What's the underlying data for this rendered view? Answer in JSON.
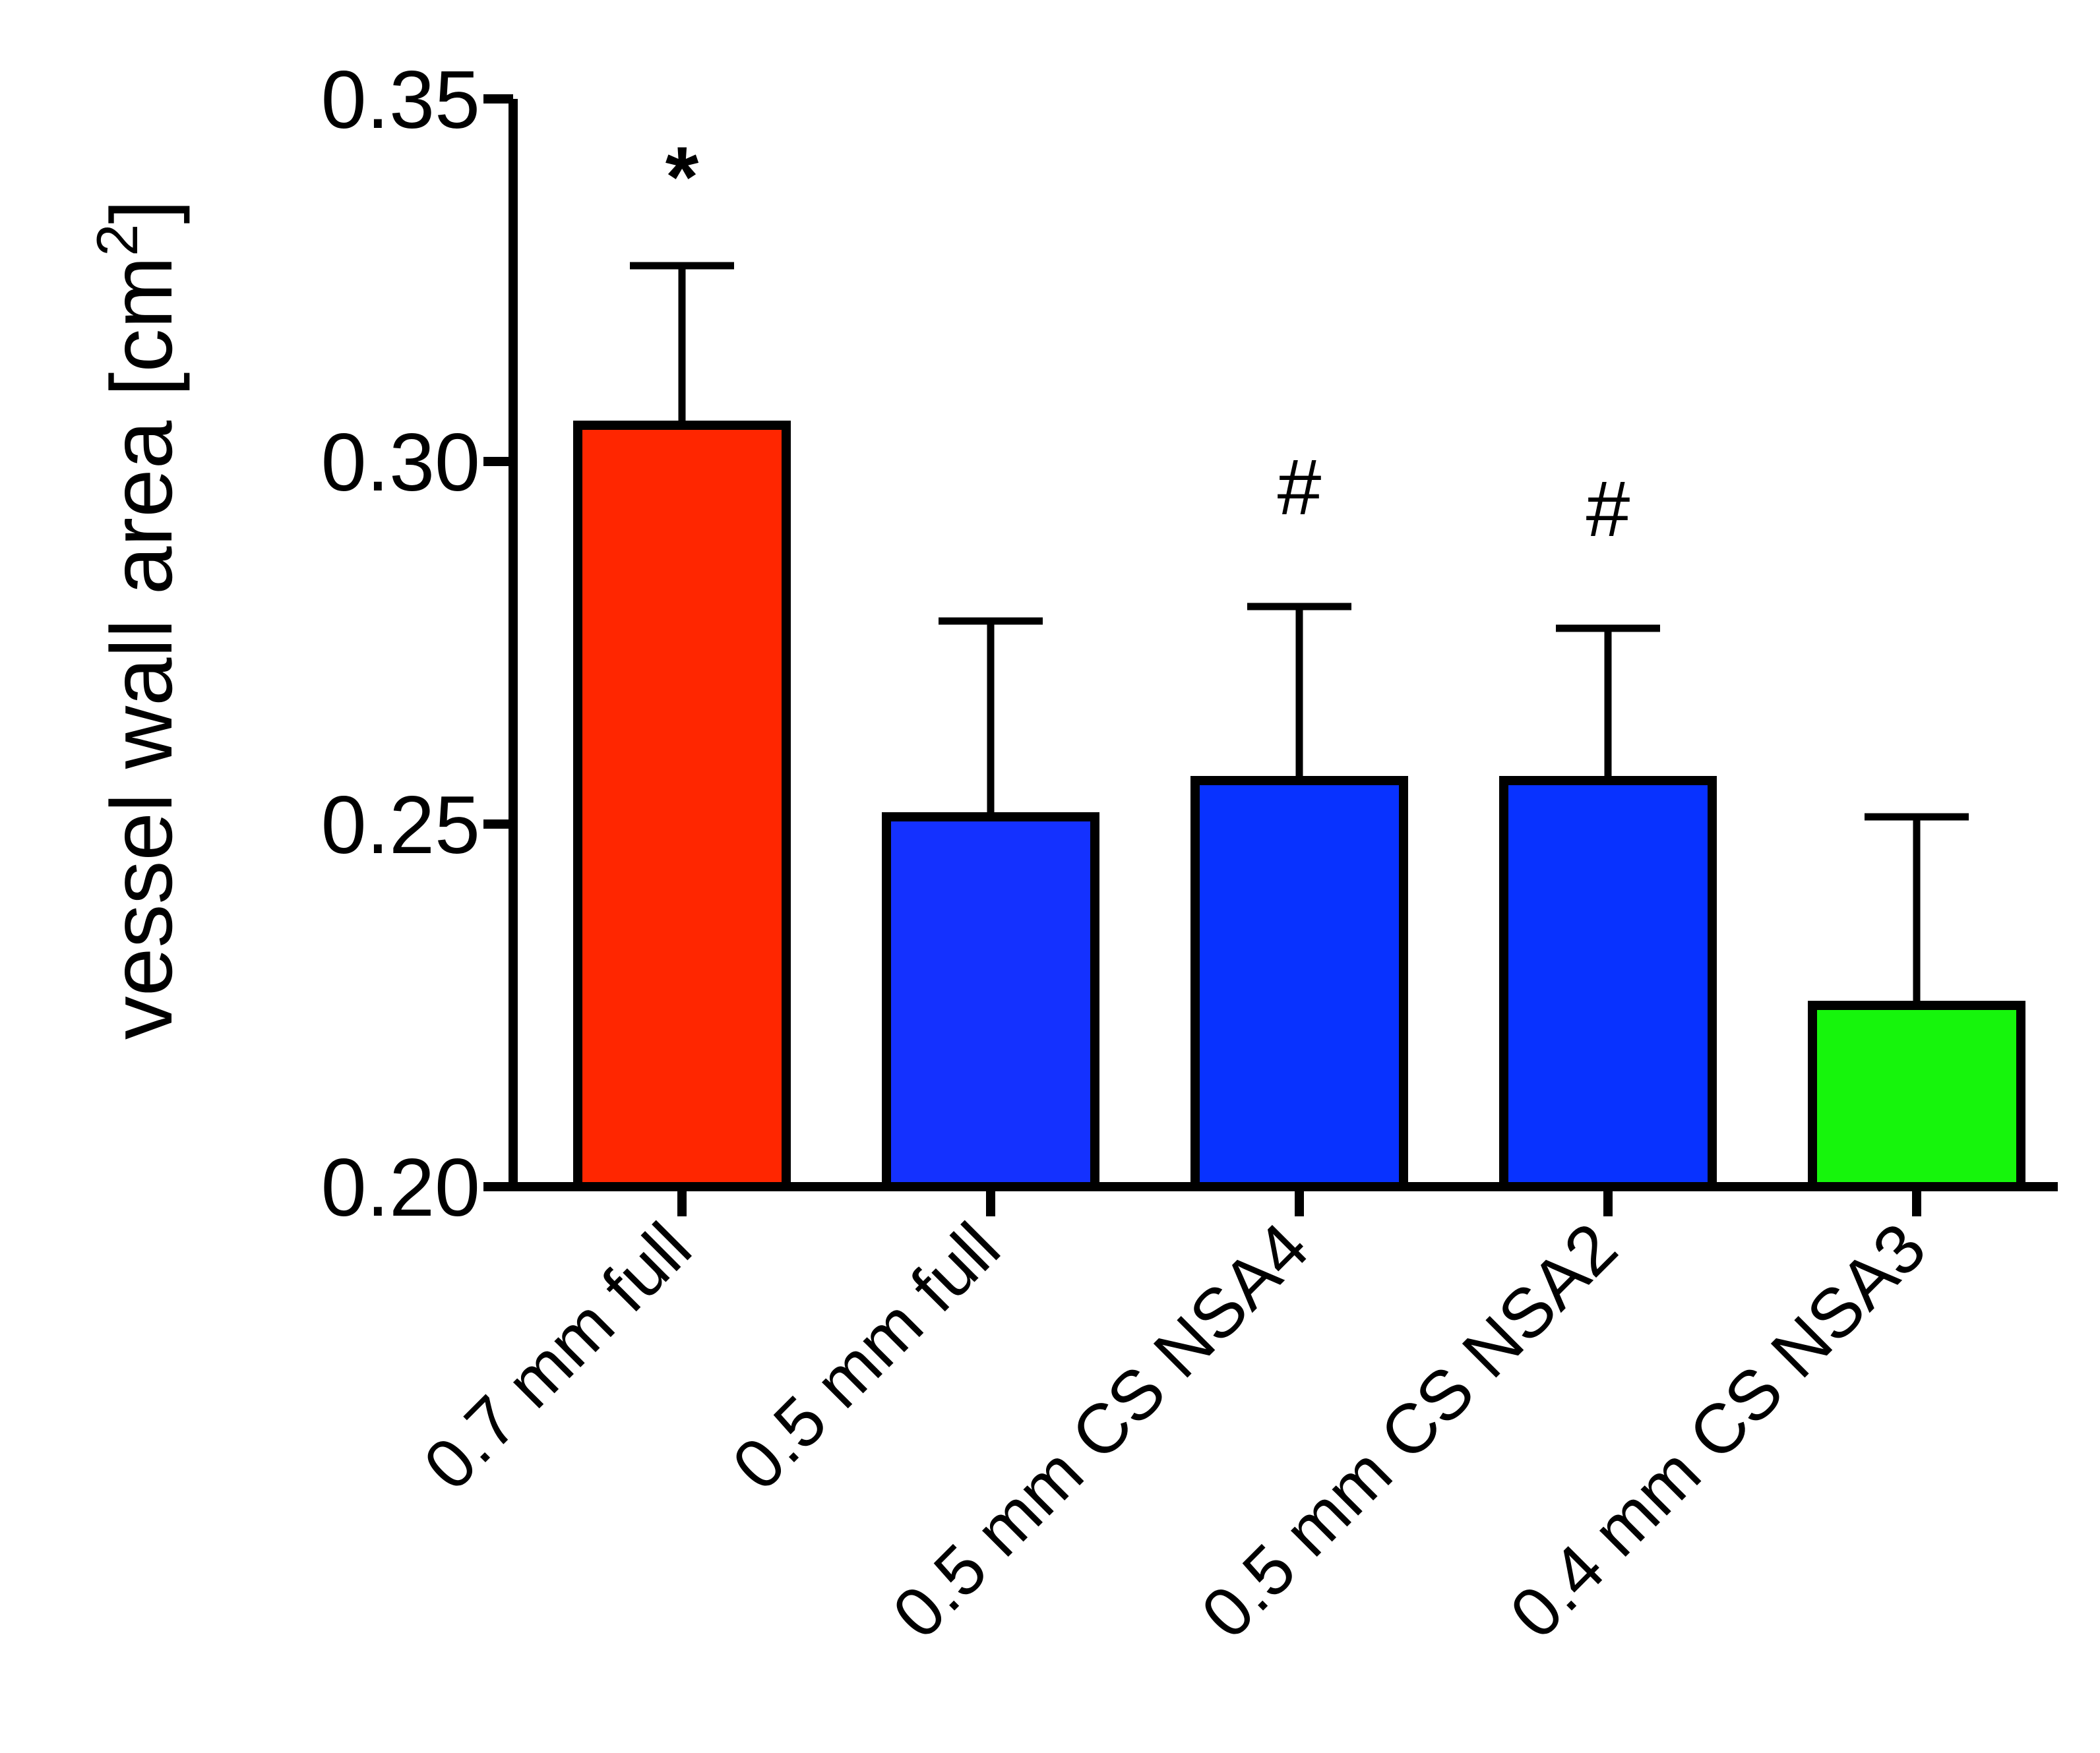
{
  "chart_data": {
    "type": "bar",
    "ylabel": "vessel wall area [cm",
    "ylabel_superscript": "2",
    "ylabel_suffix": "]",
    "ylim": [
      0.2,
      0.35
    ],
    "yticks": [
      "0.20",
      "0.25",
      "0.30",
      "0.35"
    ],
    "categories": [
      "0.7 mm full",
      "0.5 mm full",
      "0.5 mm CS NSA4",
      "0.5 mm CS NSA2",
      "0.4 mm CS NSA3"
    ],
    "values": [
      0.305,
      0.251,
      0.256,
      0.256,
      0.225
    ],
    "error": [
      0.022,
      0.027,
      0.024,
      0.021,
      0.026
    ],
    "colors": [
      "#ff2600",
      "#1431ff",
      "#0832ff",
      "#0832ff",
      "#16f50c"
    ],
    "annotations": [
      "*",
      "",
      "#",
      "#",
      ""
    ],
    "grid": false,
    "legend": "none"
  }
}
